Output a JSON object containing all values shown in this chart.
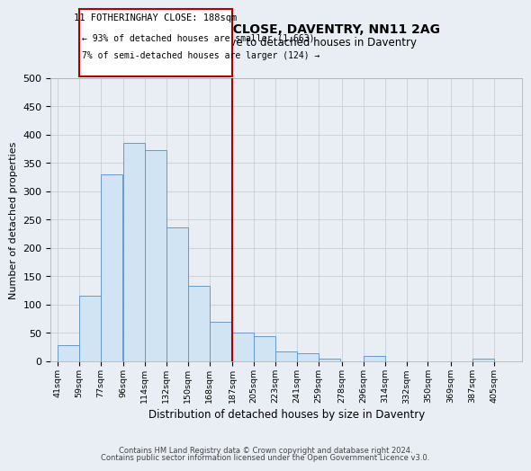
{
  "title": "11, FOTHERINGHAY CLOSE, DAVENTRY, NN11 2AG",
  "subtitle": "Size of property relative to detached houses in Daventry",
  "xlabel": "Distribution of detached houses by size in Daventry",
  "ylabel": "Number of detached properties",
  "bin_labels": [
    "41sqm",
    "59sqm",
    "77sqm",
    "96sqm",
    "114sqm",
    "132sqm",
    "150sqm",
    "168sqm",
    "187sqm",
    "205sqm",
    "223sqm",
    "241sqm",
    "259sqm",
    "278sqm",
    "296sqm",
    "314sqm",
    "332sqm",
    "350sqm",
    "369sqm",
    "387sqm",
    "405sqm"
  ],
  "bin_edges": [
    41,
    59,
    77,
    96,
    114,
    132,
    150,
    168,
    187,
    205,
    223,
    241,
    259,
    278,
    296,
    314,
    332,
    350,
    369,
    387,
    405
  ],
  "bin_width": 18,
  "bar_heights": [
    28,
    116,
    330,
    385,
    373,
    237,
    134,
    69,
    50,
    45,
    18,
    14,
    5,
    0,
    9,
    0,
    0,
    0,
    0,
    5
  ],
  "bar_color": "#d0e4f4",
  "bar_edge_color": "#6699cc",
  "property_line_x": 187,
  "property_line_color": "#aa0000",
  "annotation_title": "11 FOTHERINGHAY CLOSE: 188sqm",
  "annotation_line1": "← 93% of detached houses are smaller (1,663)",
  "annotation_line2": "7% of semi-detached houses are larger (124) →",
  "annotation_box_edge_color": "#aa0000",
  "footer_line1": "Contains HM Land Registry data © Crown copyright and database right 2024.",
  "footer_line2": "Contains public sector information licensed under the Open Government Licence v3.0.",
  "ylim": [
    0,
    500
  ],
  "yticks": [
    0,
    50,
    100,
    150,
    200,
    250,
    300,
    350,
    400,
    450,
    500
  ],
  "fig_bg_color": "#e8eef4",
  "plot_bg_color": "#e8eef4",
  "grid_color": "#c0c8d0"
}
